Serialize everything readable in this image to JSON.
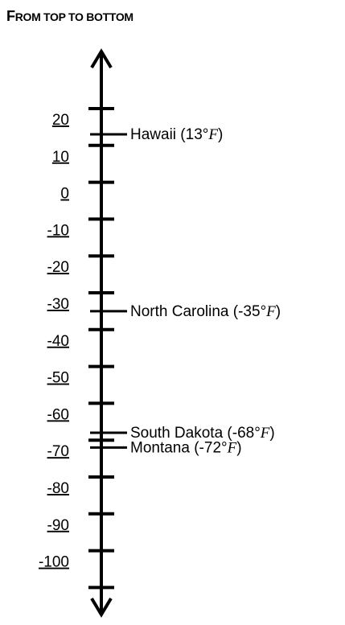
{
  "heading": {
    "first_letter": "F",
    "rest": "ROM TOP TO BOTTOM"
  },
  "number_line": {
    "tick_values": [
      20,
      10,
      0,
      -10,
      -20,
      -30,
      -40,
      -50,
      -60,
      -70,
      -80,
      -90,
      -100
    ],
    "tick_labels": [
      "20",
      "10",
      "0",
      "-10",
      "-20",
      "-30",
      "-40",
      "-50",
      "-60",
      "-70",
      "-80",
      "-90",
      "-100"
    ],
    "extra_tick_value": -110
  },
  "markers": [
    {
      "state": "Hawaii",
      "value": 13,
      "label_prefix": "Hawaii (13°",
      "unit": "F",
      "label_suffix": ")"
    },
    {
      "state": "North Carolina",
      "value": -35,
      "label_prefix": "North Carolina (-35°",
      "unit": "F",
      "label_suffix": ")"
    },
    {
      "state": "South Dakota",
      "value": -68,
      "label_prefix": "South Dakota (-68°",
      "unit": "F",
      "label_suffix": ")"
    },
    {
      "state": "Montana",
      "value": -72,
      "label_prefix": "Montana (-72°",
      "unit": "F",
      "label_suffix": ")"
    }
  ]
}
